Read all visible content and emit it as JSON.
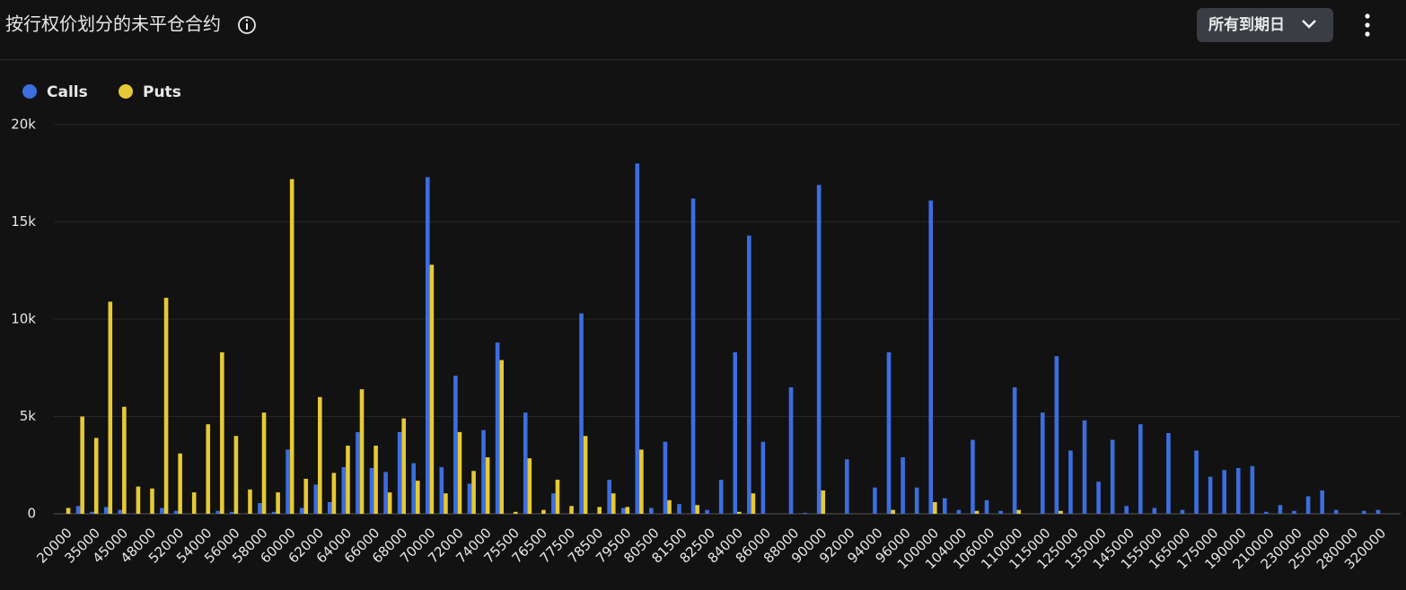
{
  "chart_data": {
    "type": "bar",
    "title": "按行权价划分的未平仓合约",
    "categories": [
      "20000",
      null,
      "35000",
      null,
      "45000",
      null,
      "48000",
      null,
      "52000",
      null,
      "54000",
      null,
      "56000",
      null,
      "58000",
      null,
      "60000",
      null,
      "62000",
      null,
      "64000",
      null,
      "66000",
      null,
      "68000",
      null,
      "70000",
      null,
      "72000",
      null,
      "74000",
      null,
      "75500",
      null,
      "76500",
      null,
      "77500",
      null,
      "78500",
      null,
      "79500",
      null,
      "80500",
      null,
      "81500",
      null,
      "82500",
      null,
      "84000",
      null,
      "86000",
      null,
      "88000",
      null,
      "90000",
      null,
      "92000",
      null,
      "94000",
      null,
      "96000",
      null,
      "100000",
      null,
      "104000",
      null,
      "106000",
      null,
      "110000",
      null,
      "115000",
      null,
      "125000",
      null,
      "135000",
      null,
      "145000",
      null,
      "155000",
      null,
      "165000",
      null,
      "175000",
      null,
      "190000",
      null,
      "210000",
      null,
      "230000",
      null,
      "250000",
      null,
      "280000",
      null,
      "320000"
    ],
    "series": [
      {
        "name": "Calls",
        "color": "#3c6ee0",
        "values": [
          0,
          400,
          100,
          350,
          200,
          0,
          0,
          300,
          150,
          0,
          0,
          150,
          100,
          0,
          550,
          100,
          3300,
          300,
          1500,
          600,
          2400,
          4200,
          2350,
          2150,
          4200,
          2600,
          17300,
          2400,
          7100,
          1550,
          4300,
          8800,
          0,
          5200,
          0,
          1050,
          0,
          10300,
          0,
          1750,
          300,
          18000,
          300,
          3700,
          500,
          16200,
          200,
          1750,
          8300,
          14300,
          3700,
          0,
          6500,
          50,
          16900,
          0,
          2800,
          0,
          1350,
          8300,
          2900,
          1350,
          16100,
          800,
          200,
          3800,
          700,
          150,
          6500,
          0,
          5200,
          8100,
          3250,
          4800,
          1650,
          3800,
          400,
          4600,
          300,
          4150,
          200,
          3250,
          1900,
          2250,
          2350,
          2450,
          100,
          450,
          150,
          900,
          1200,
          200,
          0,
          150,
          200
        ]
      },
      {
        "name": "Puts",
        "color": "#e6c937",
        "values": [
          300,
          5000,
          3900,
          10900,
          5500,
          1400,
          1300,
          11100,
          3100,
          1100,
          4600,
          8300,
          4000,
          1250,
          5200,
          1100,
          17200,
          1800,
          6000,
          2100,
          3500,
          6400,
          3500,
          1100,
          4900,
          1700,
          12800,
          1050,
          4200,
          2200,
          2900,
          7900,
          100,
          2850,
          200,
          1750,
          400,
          4000,
          350,
          1050,
          350,
          3300,
          0,
          700,
          0,
          450,
          0,
          0,
          100,
          1050,
          0,
          0,
          0,
          0,
          1200,
          0,
          0,
          0,
          0,
          200,
          0,
          0,
          600,
          0,
          0,
          150,
          0,
          0,
          200,
          0,
          0,
          150,
          0,
          0,
          0,
          0,
          0,
          0,
          0,
          0,
          0,
          0,
          0,
          0,
          0,
          0,
          0,
          0,
          0,
          0,
          0,
          0,
          0,
          0,
          0
        ]
      }
    ],
    "ylim": [
      0,
      20000
    ],
    "yticks": [
      0,
      {
        "value": 5000,
        "label": "5k"
      },
      {
        "value": 10000,
        "label": "10k"
      },
      {
        "value": 15000,
        "label": "15k"
      },
      {
        "value": 20000,
        "label": "20k"
      }
    ],
    "grid": true,
    "legend": "top-left"
  },
  "toolbar": {
    "expiry_filter": "所有到期日"
  }
}
